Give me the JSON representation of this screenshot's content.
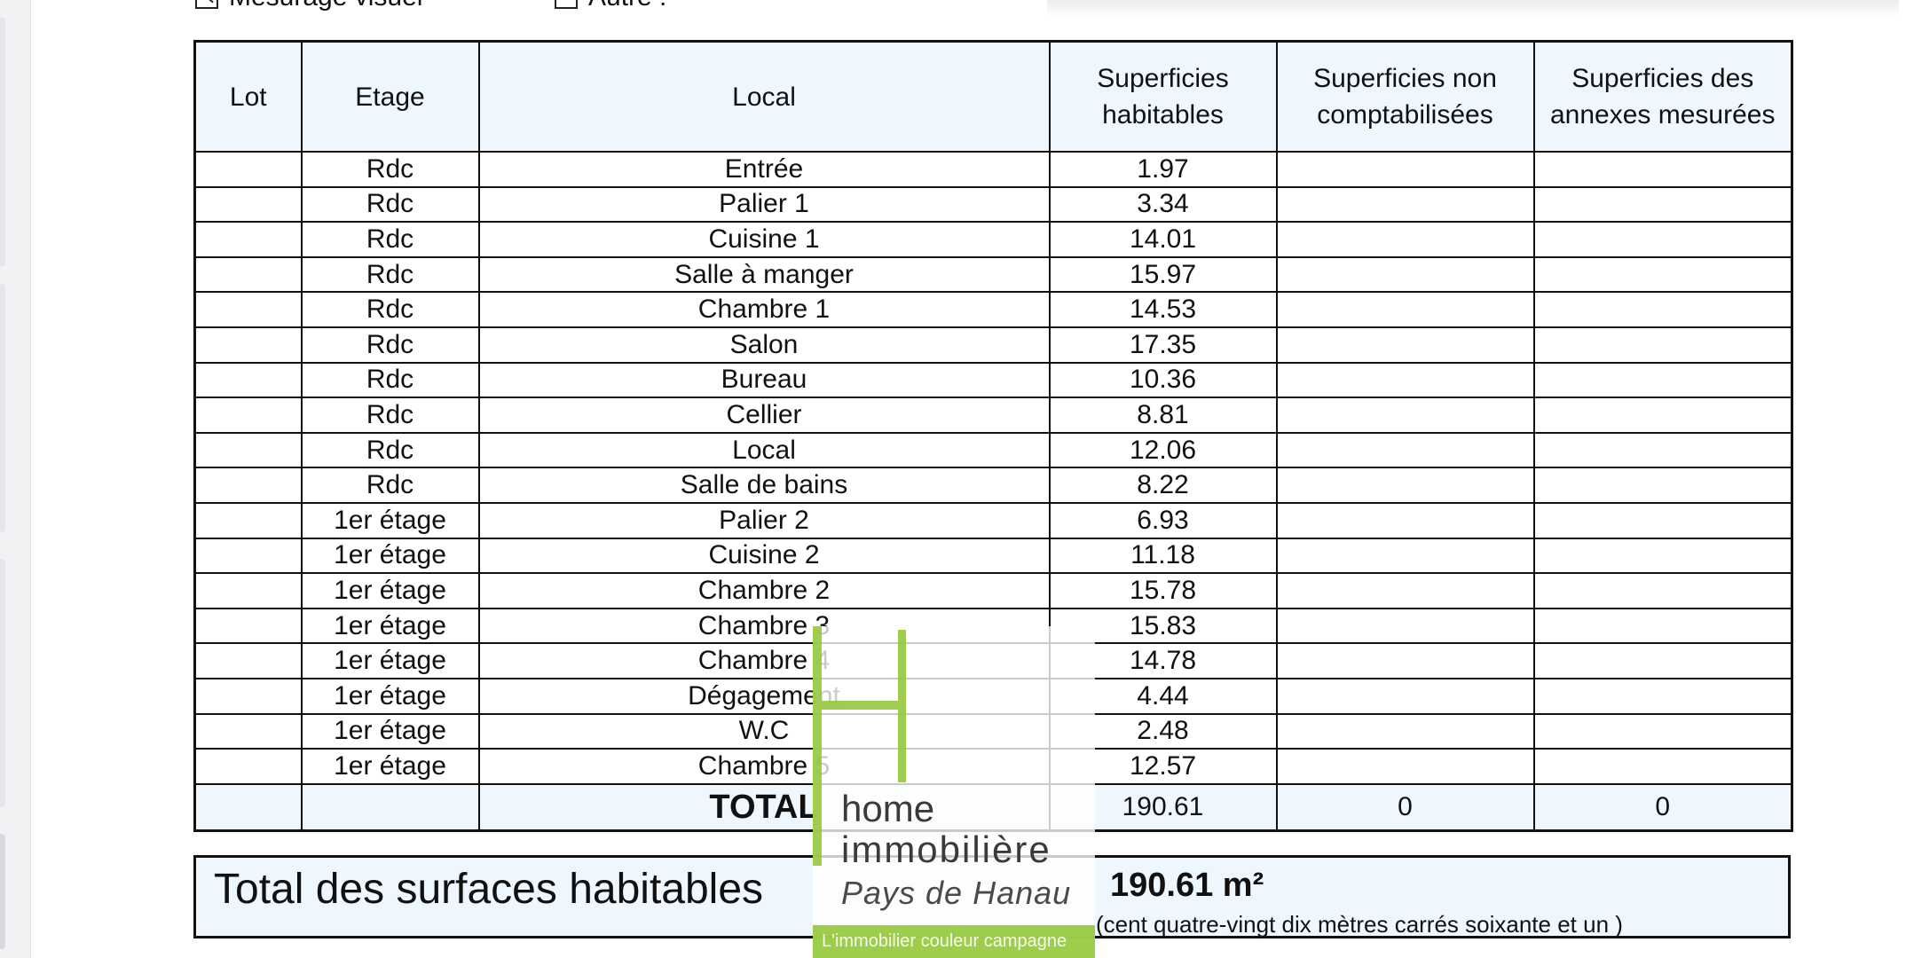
{
  "top_options": {
    "option1_label": "Mesurage visuel",
    "option2_label": "Autre :"
  },
  "table": {
    "headers": {
      "lot": "Lot",
      "etage": "Etage",
      "local": "Local",
      "habitables": "Superficies habitables",
      "non_comptabilisees": "Superficies non comptabilisées",
      "annexes": "Superficies des annexes mesurées"
    },
    "rows": [
      {
        "lot": "",
        "etage": "Rdc",
        "local": "Entrée",
        "habitable": "1.97",
        "non": "",
        "annexe": ""
      },
      {
        "lot": "",
        "etage": "Rdc",
        "local": "Palier 1",
        "habitable": "3.34",
        "non": "",
        "annexe": ""
      },
      {
        "lot": "",
        "etage": "Rdc",
        "local": "Cuisine 1",
        "habitable": "14.01",
        "non": "",
        "annexe": ""
      },
      {
        "lot": "",
        "etage": "Rdc",
        "local": "Salle à manger",
        "habitable": "15.97",
        "non": "",
        "annexe": ""
      },
      {
        "lot": "",
        "etage": "Rdc",
        "local": "Chambre 1",
        "habitable": "14.53",
        "non": "",
        "annexe": ""
      },
      {
        "lot": "",
        "etage": "Rdc",
        "local": "Salon",
        "habitable": "17.35",
        "non": "",
        "annexe": ""
      },
      {
        "lot": "",
        "etage": "Rdc",
        "local": "Bureau",
        "habitable": "10.36",
        "non": "",
        "annexe": ""
      },
      {
        "lot": "",
        "etage": "Rdc",
        "local": "Cellier",
        "habitable": "8.81",
        "non": "",
        "annexe": ""
      },
      {
        "lot": "",
        "etage": "Rdc",
        "local": "Local",
        "habitable": "12.06",
        "non": "",
        "annexe": ""
      },
      {
        "lot": "",
        "etage": "Rdc",
        "local": "Salle de bains",
        "habitable": "8.22",
        "non": "",
        "annexe": ""
      },
      {
        "lot": "",
        "etage": "1er étage",
        "local": "Palier 2",
        "habitable": "6.93",
        "non": "",
        "annexe": ""
      },
      {
        "lot": "",
        "etage": "1er étage",
        "local": "Cuisine 2",
        "habitable": "11.18",
        "non": "",
        "annexe": ""
      },
      {
        "lot": "",
        "etage": "1er étage",
        "local": "Chambre 2",
        "habitable": "15.78",
        "non": "",
        "annexe": ""
      },
      {
        "lot": "",
        "etage": "1er étage",
        "local": "Chambre 3",
        "habitable": "15.83",
        "non": "",
        "annexe": ""
      },
      {
        "lot": "",
        "etage": "1er étage",
        "local": "Chambre 4",
        "habitable": "14.78",
        "non": "",
        "annexe": ""
      },
      {
        "lot": "",
        "etage": "1er étage",
        "local": "Dégagement",
        "habitable": "4.44",
        "non": "",
        "annexe": ""
      },
      {
        "lot": "",
        "etage": "1er étage",
        "local": "W.C",
        "habitable": "2.48",
        "non": "",
        "annexe": ""
      },
      {
        "lot": "",
        "etage": "1er étage",
        "local": "Chambre 5",
        "habitable": "12.57",
        "non": "",
        "annexe": ""
      }
    ],
    "total": {
      "label": "TOTAL",
      "habitable": "190.61",
      "non": "0",
      "annexe": "0"
    }
  },
  "summary": {
    "label": "Total des surfaces habitables",
    "value": "190.61 m²",
    "words": "(cent quatre-vingt dix mètres carrés soixante et un  )"
  },
  "logo": {
    "line1": "home",
    "line2": "immobilière",
    "line3": "Pays de Hanau",
    "tagline": "L'immobilier couleur campagne",
    "accent_color": "#96c83c"
  }
}
